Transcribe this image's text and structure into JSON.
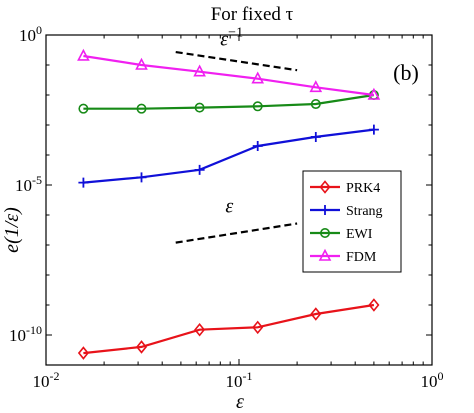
{
  "chart_data": {
    "type": "line",
    "title": "For fixed τ",
    "xlabel": "ε",
    "ylabel": "e(1/ε)",
    "xscale": "log",
    "yscale": "log",
    "xlim": [
      0.01,
      1
    ],
    "ylim": [
      1e-11,
      1
    ],
    "x_ticks": [
      {
        "value": 0.01,
        "base": "10",
        "exp": "-2"
      },
      {
        "value": 0.1,
        "base": "10",
        "exp": "-1"
      },
      {
        "value": 1,
        "base": "10",
        "exp": "0"
      }
    ],
    "y_ticks": [
      {
        "value": 1e-10,
        "base": "10",
        "exp": "-10"
      },
      {
        "value": 1e-05,
        "base": "10",
        "exp": "-5"
      },
      {
        "value": 1,
        "base": "10",
        "exp": "0"
      }
    ],
    "panel_label": "(b)",
    "legend_position": "right",
    "x": [
      0.015625,
      0.03125,
      0.0625,
      0.125,
      0.25,
      0.5
    ],
    "series": [
      {
        "name": "PRK4",
        "color": "#e8131a",
        "marker": "diamond",
        "values": [
          2.5e-11,
          4e-11,
          1.5e-10,
          1.8e-10,
          5e-10,
          1e-09
        ]
      },
      {
        "name": "Strang",
        "color": "#1010d8",
        "marker": "plus",
        "values": [
          1.2e-05,
          1.8e-05,
          3.2e-05,
          0.0002,
          0.0004,
          0.0007
        ]
      },
      {
        "name": "EWI",
        "color": "#178a17",
        "marker": "circle",
        "values": [
          0.0035,
          0.0035,
          0.0038,
          0.0042,
          0.005,
          0.01
        ]
      },
      {
        "name": "FDM",
        "color": "#f020f0",
        "marker": "triangle",
        "values": [
          0.2,
          0.1,
          0.06,
          0.035,
          0.018,
          0.01
        ]
      }
    ],
    "annotations": [
      {
        "text": "ε",
        "sup": "−1",
        "slope": -1,
        "x": [
          0.047,
          0.2
        ],
        "y": [
          0.27,
          0.067
        ],
        "label_at": [
          0.08,
          0.45
        ]
      },
      {
        "text": "ε",
        "sup": "",
        "slope": 1,
        "x": [
          0.047,
          0.2
        ],
        "y": [
          1.2e-07,
          5.2e-07
        ],
        "label_at": [
          0.085,
          1.2e-06
        ]
      }
    ]
  }
}
